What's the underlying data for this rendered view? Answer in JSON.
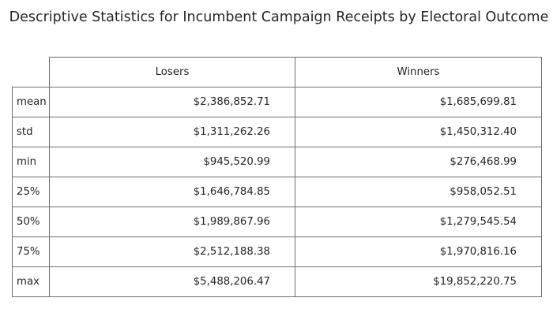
{
  "chart_data": {
    "type": "table",
    "title": "Descriptive Statistics for Incumbent Campaign Receipts by Electoral Outcome",
    "columns": [
      "Losers",
      "Winners"
    ],
    "rows": [
      {
        "label": "mean",
        "values": [
          "$2,386,852.71",
          "$1,685,699.81"
        ]
      },
      {
        "label": "std",
        "values": [
          "$1,311,262.26",
          "$1,450,312.40"
        ]
      },
      {
        "label": "min",
        "values": [
          "$945,520.99",
          "$276,468.99"
        ]
      },
      {
        "label": "25%",
        "values": [
          "$1,646,784.85",
          "$958,052.51"
        ]
      },
      {
        "label": "50%",
        "values": [
          "$1,989,867.96",
          "$1,279,545.54"
        ]
      },
      {
        "label": "75%",
        "values": [
          "$2,512,188.38",
          "$1,970,816.16"
        ]
      },
      {
        "label": "max",
        "values": [
          "$5,488,206.47",
          "$19,852,220.75"
        ]
      }
    ]
  }
}
